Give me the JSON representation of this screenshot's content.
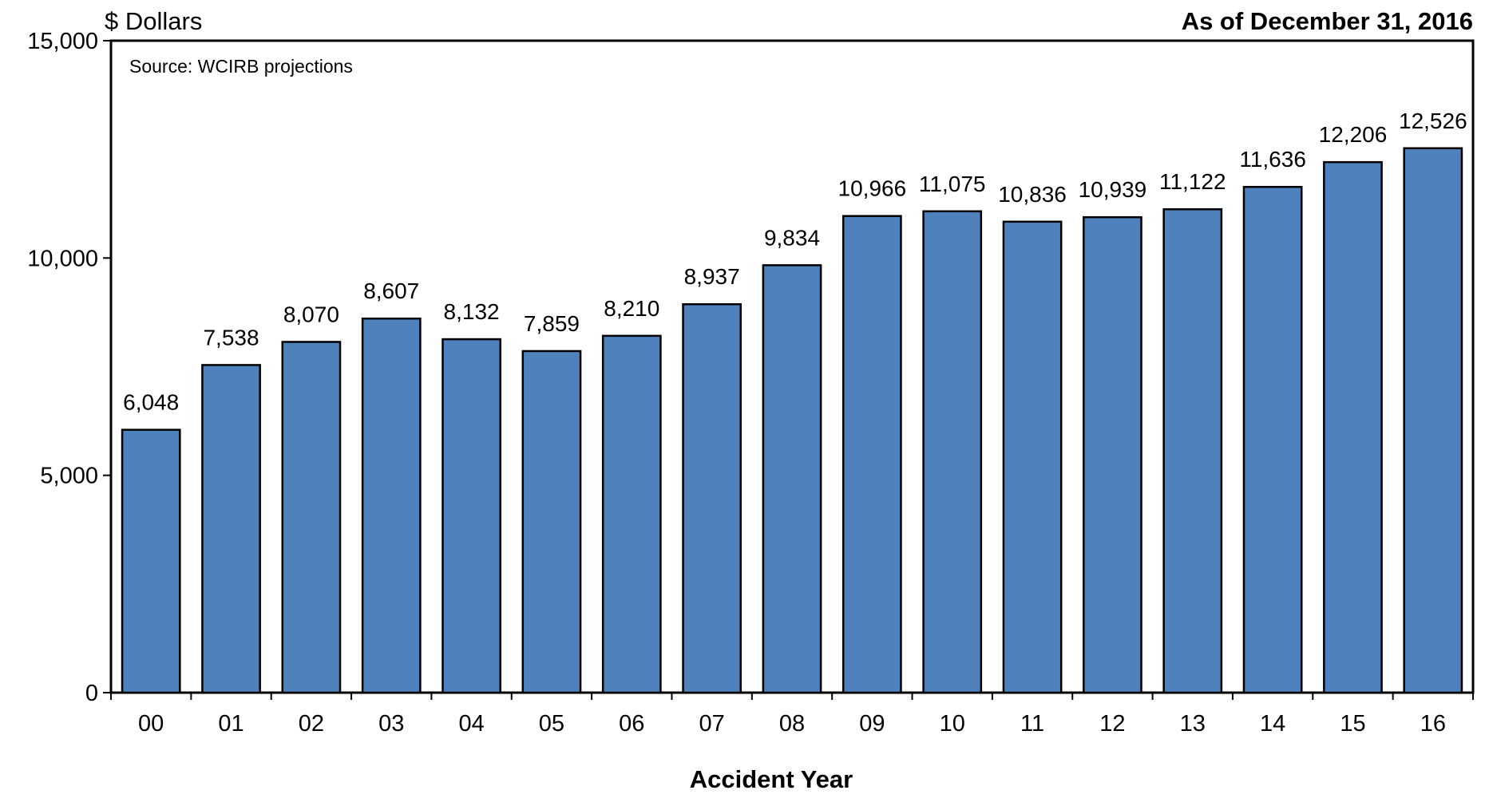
{
  "chart_data": {
    "type": "bar",
    "title": "As of December 31, 2016",
    "ylabel": "$ Dollars",
    "xlabel": "Accident Year",
    "annotation": "Source: WCIRB projections",
    "categories": [
      "00",
      "01",
      "02",
      "03",
      "04",
      "05",
      "06",
      "07",
      "08",
      "09",
      "10",
      "11",
      "12",
      "13",
      "14",
      "15",
      "16"
    ],
    "values": [
      6048,
      7538,
      8070,
      8607,
      8132,
      7859,
      8210,
      8937,
      9834,
      10966,
      11075,
      10836,
      10939,
      11122,
      11636,
      12206,
      12526
    ],
    "value_labels": [
      "6,048",
      "7,538",
      "8,070",
      "8,607",
      "8,132",
      "7,859",
      "8,210",
      "8,937",
      "9,834",
      "10,966",
      "11,075",
      "10,836",
      "10,939",
      "11,122",
      "11,636",
      "12,206",
      "12,526"
    ],
    "yticks": [
      0,
      5000,
      10000,
      15000
    ],
    "ytick_labels": [
      "0",
      "5,000",
      "10,000",
      "15,000"
    ],
    "ylim": [
      0,
      15000
    ],
    "grid": false,
    "legend": "none",
    "bar_color": "#4f81bd",
    "bar_edge_color": "#000000"
  }
}
